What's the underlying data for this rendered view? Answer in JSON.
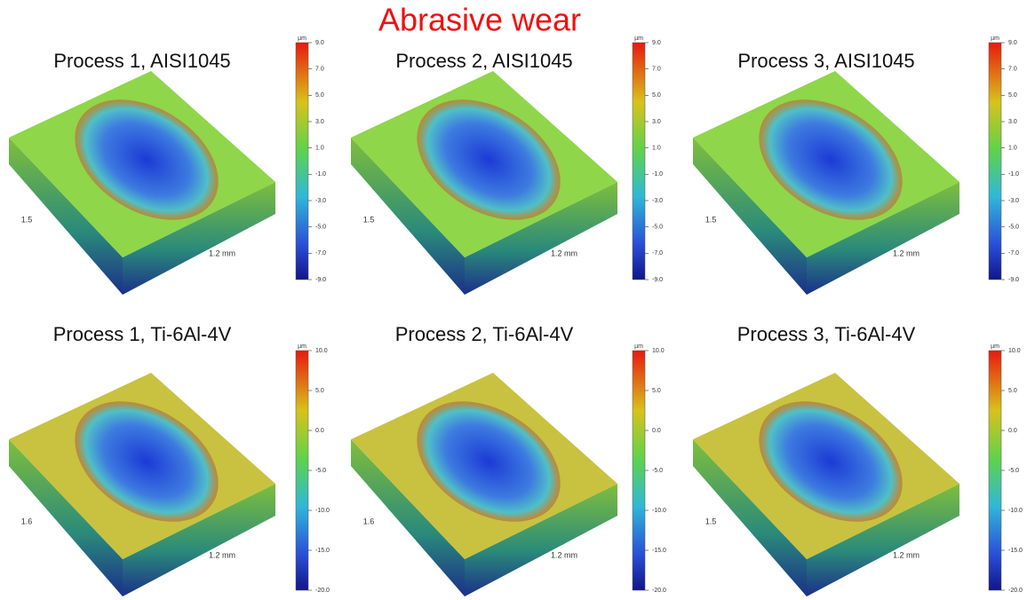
{
  "title": "Abrasive wear",
  "panels": [
    {
      "title": "Process 1, AISI1045",
      "width_label": "1.5",
      "length_label": "1.2 mm",
      "colorbar": {
        "unit": "µm",
        "ticks": [
          "9.0",
          "7.0",
          "5.0",
          "3.0",
          "1.0",
          "-1.0",
          "-3.0",
          "-5.0",
          "-7.0",
          "-9.0"
        ]
      }
    },
    {
      "title": "Process 2, AISI1045",
      "width_label": "1.5",
      "length_label": "1.2 mm",
      "colorbar": {
        "unit": "µm",
        "ticks": [
          "9.0",
          "7.0",
          "5.0",
          "3.0",
          "1.0",
          "-1.0",
          "-3.0",
          "-5.0",
          "-7.0",
          "-9.0"
        ]
      }
    },
    {
      "title": "Process 3, AISI1045",
      "width_label": "1.5",
      "length_label": "1.2 mm",
      "colorbar": {
        "unit": "µm",
        "ticks": [
          "9.0",
          "7.0",
          "5.0",
          "3.0",
          "1.0",
          "-1.0",
          "-3.0",
          "-5.0",
          "-7.0",
          "-9.0"
        ]
      }
    },
    {
      "title": "Process 1, Ti-6Al-4V",
      "width_label": "1.6",
      "length_label": "1.2 mm",
      "colorbar": {
        "unit": "µm",
        "ticks": [
          "10.0",
          "5.0",
          "0.0",
          "-5.0",
          "-10.0",
          "-15.0",
          "-20.0"
        ]
      }
    },
    {
      "title": "Process 2, Ti-6Al-4V",
      "width_label": "1.6",
      "length_label": "1.2 mm",
      "colorbar": {
        "unit": "µm",
        "ticks": [
          "10.0",
          "5.0",
          "0.0",
          "-5.0",
          "-10.0",
          "-15.0",
          "-20.0"
        ]
      }
    },
    {
      "title": "Process 3, Ti-6Al-4V",
      "width_label": "1.5",
      "length_label": "1.2 mm",
      "colorbar": {
        "unit": "µm",
        "ticks": [
          "10.0",
          "5.0",
          "0.0",
          "-5.0",
          "-10.0",
          "-15.0",
          "-20.0"
        ]
      }
    }
  ]
}
